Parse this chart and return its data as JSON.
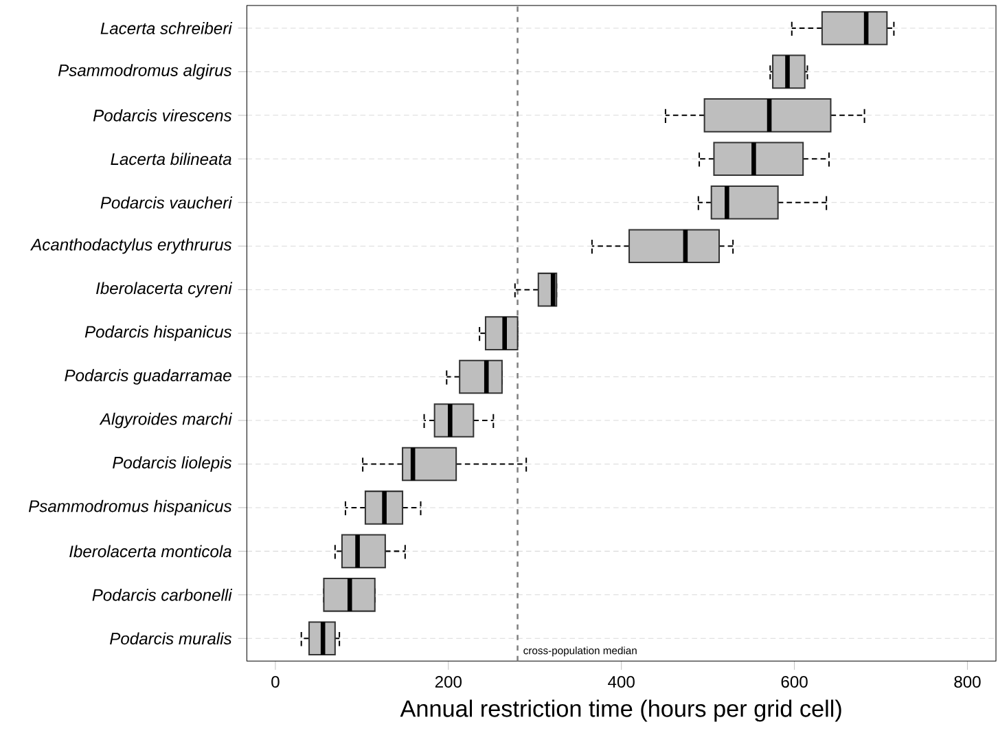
{
  "chart_data": {
    "type": "box",
    "orientation": "horizontal",
    "color": "#bebebe",
    "grid": "y",
    "xlabel": "Annual restriction time (hours per grid cell)",
    "categories": [
      "Lacerta schreiberi",
      "Psammodromus algirus",
      "Podarcis virescens",
      "Lacerta bilineata",
      "Podarcis vaucheri",
      "Acanthodactylus erythrurus",
      "Iberolacerta cyreni",
      "Podarcis hispanicus",
      "Podarcis guadarramae",
      "Algyroides marchi",
      "Podarcis liolepis",
      "Psammodromus hispanicus",
      "Iberolacerta monticola",
      "Podarcis carbonelli",
      "Podarcis muralis"
    ],
    "boxes": [
      {
        "low": 597,
        "q1": 632,
        "median": 683,
        "q3": 707,
        "high": 715
      },
      {
        "low": 572,
        "q1": 575,
        "median": 592,
        "q3": 612,
        "high": 615
      },
      {
        "low": 451,
        "q1": 496,
        "median": 571,
        "q3": 642,
        "high": 681
      },
      {
        "low": 490,
        "q1": 507,
        "median": 553,
        "q3": 610,
        "high": 640
      },
      {
        "low": 489,
        "q1": 504,
        "median": 522,
        "q3": 581,
        "high": 637
      },
      {
        "low": 366,
        "q1": 409,
        "median": 474,
        "q3": 513,
        "high": 529
      },
      {
        "low": 277,
        "q1": 304,
        "median": 321,
        "q3": 325,
        "high": 325
      },
      {
        "low": 236,
        "q1": 243,
        "median": 265,
        "q3": 280,
        "high": 280
      },
      {
        "low": 198,
        "q1": 213,
        "median": 244,
        "q3": 262,
        "high": 262
      },
      {
        "low": 172,
        "q1": 184,
        "median": 202,
        "q3": 229,
        "high": 252
      },
      {
        "low": 101,
        "q1": 147,
        "median": 159,
        "q3": 209,
        "high": 290
      },
      {
        "low": 81,
        "q1": 104,
        "median": 126,
        "q3": 147,
        "high": 168
      },
      {
        "low": 69,
        "q1": 77,
        "median": 95,
        "q3": 127,
        "high": 150
      },
      {
        "low": 56,
        "q1": 56,
        "median": 86,
        "q3": 115,
        "high": 115
      },
      {
        "low": 30,
        "q1": 39,
        "median": 55,
        "q3": 69,
        "high": 74
      }
    ],
    "xlim": [
      -33,
      833
    ],
    "xticks": [
      0,
      200,
      400,
      600,
      800
    ],
    "ref_lines": [
      {
        "axis": "x",
        "value": 280,
        "label": "cross-population median",
        "color": "#808080",
        "line_style": "dashed"
      }
    ]
  }
}
